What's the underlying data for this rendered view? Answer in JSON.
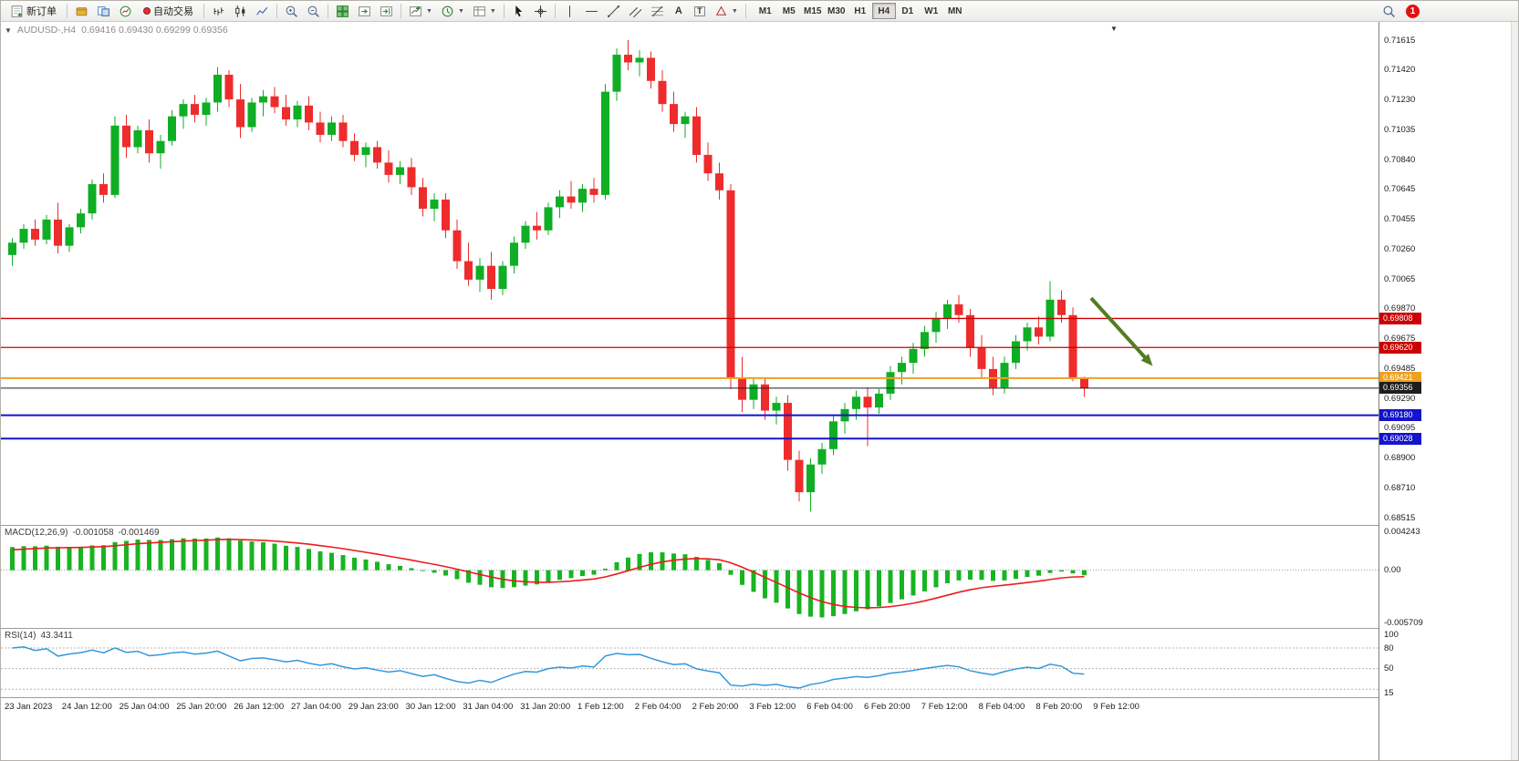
{
  "toolbar": {
    "new_order_label": "新订单",
    "auto_trading_label": "自动交易",
    "timeframes": [
      "M1",
      "M5",
      "M15",
      "M30",
      "H1",
      "H4",
      "D1",
      "W1",
      "MN"
    ],
    "active_timeframe": "H4",
    "notification_count": "1"
  },
  "colors": {
    "bull": "#0FAE24",
    "bear": "#EE2C2C",
    "macd_hist": "#18B421",
    "macd_signal": "#ED1C1C",
    "rsi_line": "#3598DB"
  },
  "chart_data": [
    {
      "type": "candlestick",
      "title": "AUDUSD-,H4",
      "ohlc_text": "0.69416 0.69430 0.69299 0.69356",
      "ylim": [
        0.68515,
        0.71615
      ],
      "y_ticks": [
        "0.71615",
        "0.71420",
        "0.71230",
        "0.71035",
        "0.70840",
        "0.70645",
        "0.70455",
        "0.70260",
        "0.70065",
        "0.69870",
        "0.69675",
        "0.69485",
        "0.69290",
        "0.69095",
        "0.68900",
        "0.68710",
        "0.68515"
      ],
      "x_labels": [
        "23 Jan 2023",
        "24 Jan 12:00",
        "25 Jan 04:00",
        "25 Jan 20:00",
        "26 Jan 12:00",
        "27 Jan 04:00",
        "29 Jan 23:00",
        "30 Jan 12:00",
        "31 Jan 04:00",
        "31 Jan 20:00",
        "1 Feb 12:00",
        "2 Feb 04:00",
        "2 Feb 20:00",
        "3 Feb 12:00",
        "6 Feb 04:00",
        "6 Feb 20:00",
        "7 Feb 12:00",
        "8 Feb 04:00",
        "8 Feb 20:00",
        "9 Feb 12:00"
      ],
      "grid": false,
      "candles": [
        [
          0.7022,
          0.7033,
          0.7015,
          0.703
        ],
        [
          0.703,
          0.7042,
          0.7026,
          0.7039
        ],
        [
          0.7039,
          0.7045,
          0.7028,
          0.7032
        ],
        [
          0.7032,
          0.7048,
          0.7029,
          0.7045
        ],
        [
          0.7045,
          0.7056,
          0.7023,
          0.7028
        ],
        [
          0.7028,
          0.7042,
          0.7024,
          0.704
        ],
        [
          0.704,
          0.7052,
          0.7036,
          0.7049
        ],
        [
          0.7049,
          0.7071,
          0.7045,
          0.7068
        ],
        [
          0.7068,
          0.7075,
          0.7056,
          0.7061
        ],
        [
          0.7061,
          0.7112,
          0.7059,
          0.7106
        ],
        [
          0.7106,
          0.7113,
          0.7085,
          0.7092
        ],
        [
          0.7092,
          0.7106,
          0.7088,
          0.7103
        ],
        [
          0.7103,
          0.711,
          0.7082,
          0.7088
        ],
        [
          0.7088,
          0.71,
          0.7078,
          0.7096
        ],
        [
          0.7096,
          0.7116,
          0.7093,
          0.7112
        ],
        [
          0.7112,
          0.7123,
          0.7104,
          0.712
        ],
        [
          0.712,
          0.7126,
          0.7108,
          0.7113
        ],
        [
          0.7113,
          0.7124,
          0.7106,
          0.7121
        ],
        [
          0.7121,
          0.7144,
          0.7115,
          0.7139
        ],
        [
          0.7139,
          0.7142,
          0.7118,
          0.7123
        ],
        [
          0.7123,
          0.7133,
          0.7098,
          0.7105
        ],
        [
          0.7105,
          0.7124,
          0.7102,
          0.7121
        ],
        [
          0.7121,
          0.7129,
          0.7112,
          0.7125
        ],
        [
          0.7125,
          0.7131,
          0.7114,
          0.7118
        ],
        [
          0.7118,
          0.7126,
          0.7106,
          0.711
        ],
        [
          0.711,
          0.7122,
          0.7105,
          0.7119
        ],
        [
          0.7119,
          0.7125,
          0.7103,
          0.7108
        ],
        [
          0.7108,
          0.7115,
          0.7095,
          0.71
        ],
        [
          0.71,
          0.7112,
          0.7096,
          0.7108
        ],
        [
          0.7108,
          0.7113,
          0.7092,
          0.7096
        ],
        [
          0.7096,
          0.7101,
          0.7083,
          0.7087
        ],
        [
          0.7087,
          0.7095,
          0.7079,
          0.7092
        ],
        [
          0.7092,
          0.7096,
          0.7078,
          0.7082
        ],
        [
          0.7082,
          0.709,
          0.7069,
          0.7074
        ],
        [
          0.7074,
          0.7083,
          0.7068,
          0.7079
        ],
        [
          0.7079,
          0.7085,
          0.7061,
          0.7066
        ],
        [
          0.7066,
          0.7072,
          0.7047,
          0.7052
        ],
        [
          0.7052,
          0.7062,
          0.7044,
          0.7058
        ],
        [
          0.7058,
          0.7062,
          0.7033,
          0.7038
        ],
        [
          0.7038,
          0.7045,
          0.7013,
          0.7018
        ],
        [
          0.7018,
          0.703,
          0.7002,
          0.7006
        ],
        [
          0.7006,
          0.702,
          0.6998,
          0.7015
        ],
        [
          0.7015,
          0.7024,
          0.6993,
          0.7
        ],
        [
          0.7,
          0.7018,
          0.6996,
          0.7015
        ],
        [
          0.7015,
          0.7034,
          0.701,
          0.703
        ],
        [
          0.703,
          0.7044,
          0.7026,
          0.7041
        ],
        [
          0.7041,
          0.705,
          0.7032,
          0.7038
        ],
        [
          0.7038,
          0.7056,
          0.7035,
          0.7053
        ],
        [
          0.7053,
          0.7064,
          0.7046,
          0.706
        ],
        [
          0.706,
          0.707,
          0.7052,
          0.7056
        ],
        [
          0.7056,
          0.7068,
          0.705,
          0.7065
        ],
        [
          0.7065,
          0.7072,
          0.7056,
          0.7061
        ],
        [
          0.7061,
          0.7133,
          0.7058,
          0.7128
        ],
        [
          0.7128,
          0.7156,
          0.7122,
          0.7152
        ],
        [
          0.7152,
          0.71615,
          0.7142,
          0.7147
        ],
        [
          0.7147,
          0.7155,
          0.7138,
          0.715
        ],
        [
          0.715,
          0.7154,
          0.713,
          0.7135
        ],
        [
          0.7135,
          0.7142,
          0.7115,
          0.712
        ],
        [
          0.712,
          0.7128,
          0.7102,
          0.7107
        ],
        [
          0.7107,
          0.7115,
          0.7098,
          0.7112
        ],
        [
          0.7112,
          0.7118,
          0.7082,
          0.7087
        ],
        [
          0.7087,
          0.7095,
          0.707,
          0.7075
        ],
        [
          0.7075,
          0.7082,
          0.7058,
          0.7064
        ],
        [
          0.7064,
          0.7068,
          0.6935,
          0.6942
        ],
        [
          0.6942,
          0.6956,
          0.692,
          0.6928
        ],
        [
          0.6928,
          0.6942,
          0.6922,
          0.6938
        ],
        [
          0.6938,
          0.6942,
          0.6915,
          0.6921
        ],
        [
          0.6921,
          0.693,
          0.6912,
          0.6926
        ],
        [
          0.6926,
          0.6931,
          0.6882,
          0.6889
        ],
        [
          0.6889,
          0.6895,
          0.6862,
          0.6868
        ],
        [
          0.6868,
          0.689,
          0.68555,
          0.6886
        ],
        [
          0.6886,
          0.69,
          0.688,
          0.6896
        ],
        [
          0.6896,
          0.6918,
          0.6892,
          0.6914
        ],
        [
          0.6914,
          0.6926,
          0.6906,
          0.6922
        ],
        [
          0.6922,
          0.6934,
          0.6915,
          0.693
        ],
        [
          0.693,
          0.6936,
          0.6898,
          0.6923
        ],
        [
          0.6923,
          0.6935,
          0.6919,
          0.6932
        ],
        [
          0.6932,
          0.695,
          0.6928,
          0.6946
        ],
        [
          0.6946,
          0.6956,
          0.6938,
          0.6952
        ],
        [
          0.6952,
          0.6965,
          0.6945,
          0.6961
        ],
        [
          0.6961,
          0.6976,
          0.6956,
          0.6972
        ],
        [
          0.6972,
          0.6985,
          0.6965,
          0.6981
        ],
        [
          0.6981,
          0.6993,
          0.6974,
          0.699
        ],
        [
          0.699,
          0.6996,
          0.6978,
          0.6983
        ],
        [
          0.6983,
          0.6987,
          0.6956,
          0.6962
        ],
        [
          0.6962,
          0.697,
          0.6942,
          0.6948
        ],
        [
          0.6948,
          0.6956,
          0.6931,
          0.6936
        ],
        [
          0.6936,
          0.6956,
          0.6932,
          0.6952
        ],
        [
          0.6952,
          0.697,
          0.6948,
          0.6966
        ],
        [
          0.6966,
          0.6978,
          0.696,
          0.6975
        ],
        [
          0.6975,
          0.6982,
          0.6964,
          0.6969
        ],
        [
          0.6969,
          0.7005,
          0.6966,
          0.6993
        ],
        [
          0.6993,
          0.6999,
          0.6978,
          0.6983
        ],
        [
          0.6983,
          0.6988,
          0.694,
          0.69416
        ],
        [
          0.69416,
          0.6943,
          0.69299,
          0.69356
        ]
      ],
      "hlines": [
        {
          "name": "resistance-line-1",
          "price": 0.69808,
          "color": "#CC0000",
          "tag": "0.69808",
          "width": 1.3
        },
        {
          "name": "resistance-line-2",
          "price": 0.6962,
          "color": "#CC0000",
          "tag": "0.69620",
          "width": 1.3
        },
        {
          "name": "pivot-line-gold",
          "price": 0.69421,
          "color": "#EFA120",
          "tag": "0.69421",
          "width": 2
        },
        {
          "name": "bid-price-line",
          "price": 0.69356,
          "color": "#1E1E1E",
          "tag": "0.69356",
          "width": 1
        },
        {
          "name": "support-line-1",
          "price": 0.6918,
          "color": "#1414CC",
          "tag": "0.69180",
          "width": 2
        },
        {
          "name": "support-line-2",
          "price": 0.69028,
          "color": "#1414CC",
          "tag": "0.69028",
          "width": 2
        }
      ],
      "arrow": {
        "from_bar": 94.6,
        "from_price": 0.6994,
        "to_bar": 100.0,
        "to_price": 0.695,
        "color": "#527D20"
      }
    },
    {
      "type": "macd",
      "label": "MACD(12,26,9)",
      "main_value": "-0.001058",
      "signal_value": "-0.001469",
      "params": [
        12,
        26,
        9
      ],
      "ylim": [
        -0.005709,
        0.004243
      ],
      "y_ticks": [
        "0.004243",
        "0.00",
        "-0.005709"
      ]
    },
    {
      "type": "rsi",
      "label": "RSI(14)",
      "value": "43.3411",
      "period": 14,
      "ylim": [
        15,
        100
      ],
      "levels": [
        80,
        50,
        20
      ],
      "y_ticks": [
        {
          "label": "100",
          "value": 100
        },
        {
          "label": "80",
          "value": 80
        },
        {
          "label": "50",
          "value": 50
        },
        {
          "label": "15",
          "value": 15
        }
      ]
    }
  ]
}
